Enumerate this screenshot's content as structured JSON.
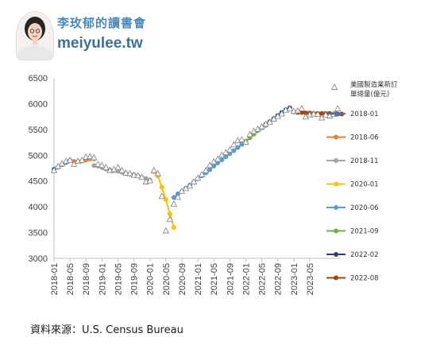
{
  "brand": {
    "name": "李玫郁的讀書會",
    "url": "meiyulee.tw"
  },
  "source_note": "資料來源：U.S. Census Bureau",
  "chart_data": {
    "type": "line",
    "title": "",
    "xlabel": "",
    "ylabel": "",
    "ylim": [
      3000,
      6500
    ],
    "yticks": [
      3000,
      3500,
      4000,
      4500,
      5000,
      5500,
      6000,
      6500
    ],
    "xtick_labels": [
      "2018-01",
      "2018-05",
      "2018-09",
      "2019-01",
      "2019-05",
      "2019-09",
      "2020-01",
      "2020-05",
      "2020-09",
      "2021-01",
      "2021-05",
      "2021-09",
      "2022-01",
      "2022-05",
      "2022-09",
      "2023-01",
      "2023-05"
    ],
    "grid": false,
    "legend_position": "right",
    "markers": {
      "name": "美國製造業新訂單總量(億元)",
      "values": [
        4700,
        4780,
        4830,
        4880,
        4900,
        4820,
        4880,
        4900,
        4960,
        4970,
        4950,
        4820,
        4800,
        4760,
        4700,
        4720,
        4760,
        4700,
        4650,
        4640,
        4610,
        4600,
        4570,
        4480,
        4500,
        4700,
        4640,
        4200,
        3530,
        3750,
        4050,
        4180,
        4300,
        4350,
        4400,
        4480,
        4550,
        4620,
        4700,
        4800,
        4870,
        4920,
        5000,
        5050,
        5100,
        5200,
        5280,
        5300,
        5250,
        5400,
        5460,
        5500,
        5550,
        5600,
        5640,
        5700,
        5750,
        5800,
        5870,
        5900,
        5850,
        5860,
        5900,
        5740,
        5780,
        5800,
        5790,
        5720,
        5780,
        5760,
        5790,
        5900
      ]
    },
    "series": [
      {
        "name": "2018-01",
        "color": "#4472C4",
        "start": 0,
        "values": [
          4730,
          4770,
          4820,
          4860,
          4900
        ]
      },
      {
        "name": "2018-06",
        "color": "#ED7D31",
        "start": 5,
        "values": [
          4880,
          4880,
          4890,
          4910,
          4930,
          4930
        ]
      },
      {
        "name": "2018-11",
        "color": "#A5A5A5",
        "start": 10,
        "values": [
          4800,
          4790,
          4760,
          4730,
          4720,
          4700,
          4690,
          4670,
          4650,
          4630,
          4620,
          4600,
          4570,
          4550,
          4520
        ]
      },
      {
        "name": "2020-01",
        "color": "#FFC000",
        "start": 25,
        "values": [
          4680,
          4600,
          4380,
          4140,
          3860,
          3600
        ]
      },
      {
        "name": "2020-06",
        "color": "#5B9BD5",
        "start": 30,
        "values": [
          4180,
          4250,
          4300,
          4360,
          4420,
          4480,
          4540,
          4600,
          4660,
          4720,
          4790,
          4850,
          4910,
          4970,
          5030,
          5090,
          5150,
          5210,
          5270
        ]
      },
      {
        "name": "2021-09",
        "color": "#70AD47",
        "start": 48,
        "values": [
          5270,
          5340,
          5410,
          5480,
          5530,
          5580
        ]
      },
      {
        "name": "2022-02",
        "color": "#264478",
        "start": 53,
        "values": [
          5600,
          5650,
          5710,
          5770,
          5830,
          5880,
          5920
        ]
      },
      {
        "name": "2022-08",
        "color": "#9E480E",
        "start": 60,
        "values": [
          5840,
          5830,
          5830,
          5820,
          5820,
          5810,
          5810,
          5810,
          5810,
          5810,
          5800,
          5800,
          5800
        ]
      }
    ]
  }
}
